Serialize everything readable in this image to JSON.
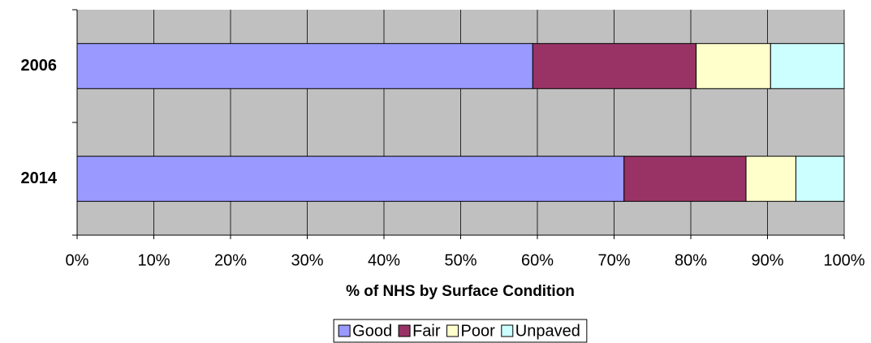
{
  "chart_data": {
    "type": "bar",
    "orientation": "horizontal",
    "stacked": true,
    "x_label": "% of NHS by Surface Condition",
    "categories": [
      "2006",
      "2014"
    ],
    "series": [
      {
        "name": "Good",
        "color": "#9999ff",
        "values": [
          59.4,
          71.3
        ]
      },
      {
        "name": "Fair",
        "color": "#993366",
        "values": [
          21.3,
          15.9
        ]
      },
      {
        "name": "Poor",
        "color": "#ffffcc",
        "values": [
          9.7,
          6.5
        ]
      },
      {
        "name": "Unpaved",
        "color": "#ccffff",
        "values": [
          9.6,
          6.3
        ]
      }
    ],
    "xlim": [
      0,
      100
    ],
    "xticks": [
      {
        "value": 0,
        "label": "0%"
      },
      {
        "value": 10,
        "label": "10%"
      },
      {
        "value": 20,
        "label": "20%"
      },
      {
        "value": 30,
        "label": "30%"
      },
      {
        "value": 40,
        "label": "40%"
      },
      {
        "value": 50,
        "label": "50%"
      },
      {
        "value": 60,
        "label": "60%"
      },
      {
        "value": 70,
        "label": "70%"
      },
      {
        "value": 80,
        "label": "80%"
      },
      {
        "value": 90,
        "label": "90%"
      },
      {
        "value": 100,
        "label": "100%"
      }
    ],
    "grid": true,
    "plot_background": "#c0c0c0",
    "legend": "bottom"
  }
}
